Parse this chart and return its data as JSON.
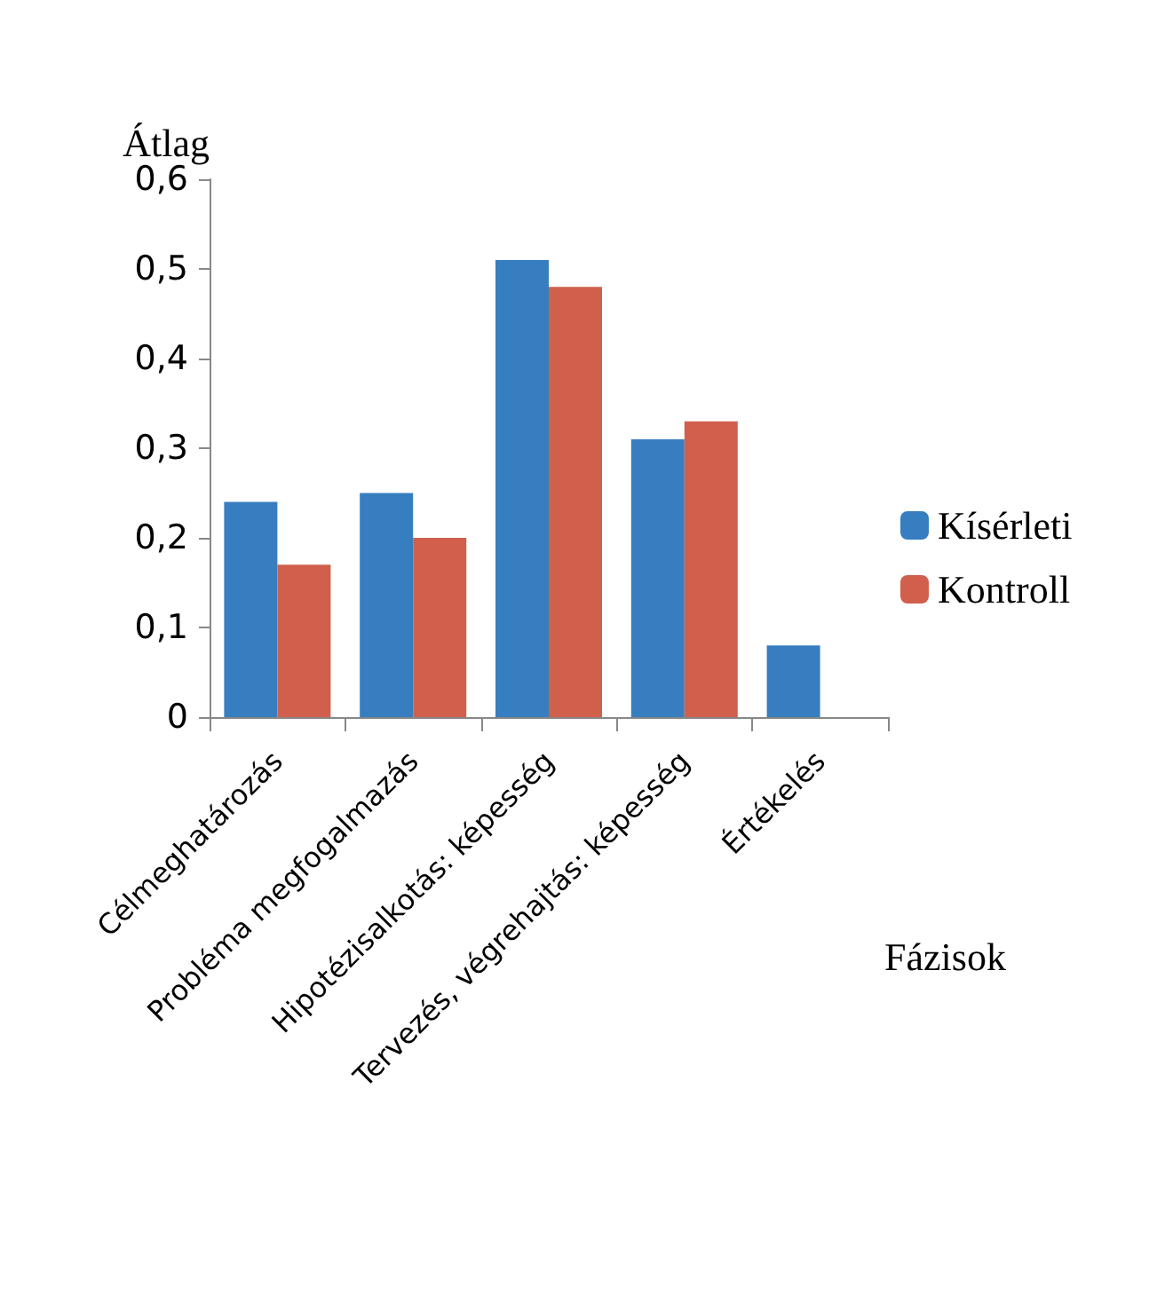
{
  "chart_data": {
    "type": "bar",
    "xlabel": "Fázisok",
    "ylabel": "Átlag",
    "categories": [
      "Célmeghatározás",
      "Probléma megfogalmazás",
      "Hipotézisalkotás: képesség",
      "Tervezés, végrehajtás: képesség",
      "Értékelés"
    ],
    "series": [
      {
        "name": "Kísérleti",
        "color": "#367ebf",
        "values": [
          0.24,
          0.25,
          0.51,
          0.31,
          0.08
        ]
      },
      {
        "name": "Kontroll",
        "color": "#d0604c",
        "values": [
          0.17,
          0.2,
          0.48,
          0.33,
          null
        ]
      }
    ],
    "ylim": [
      0,
      0.6
    ],
    "yticks": [
      0,
      {
        "value": 0.1,
        "label": "0,1"
      },
      {
        "value": 0.2,
        "label": "0,2"
      },
      {
        "value": 0.3,
        "label": "0,3"
      },
      {
        "value": 0.4,
        "label": "0,4"
      },
      {
        "value": 0.5,
        "label": "0,5"
      },
      {
        "value": 0.6,
        "label": "0,6"
      }
    ],
    "grid": false,
    "legend": "right"
  }
}
